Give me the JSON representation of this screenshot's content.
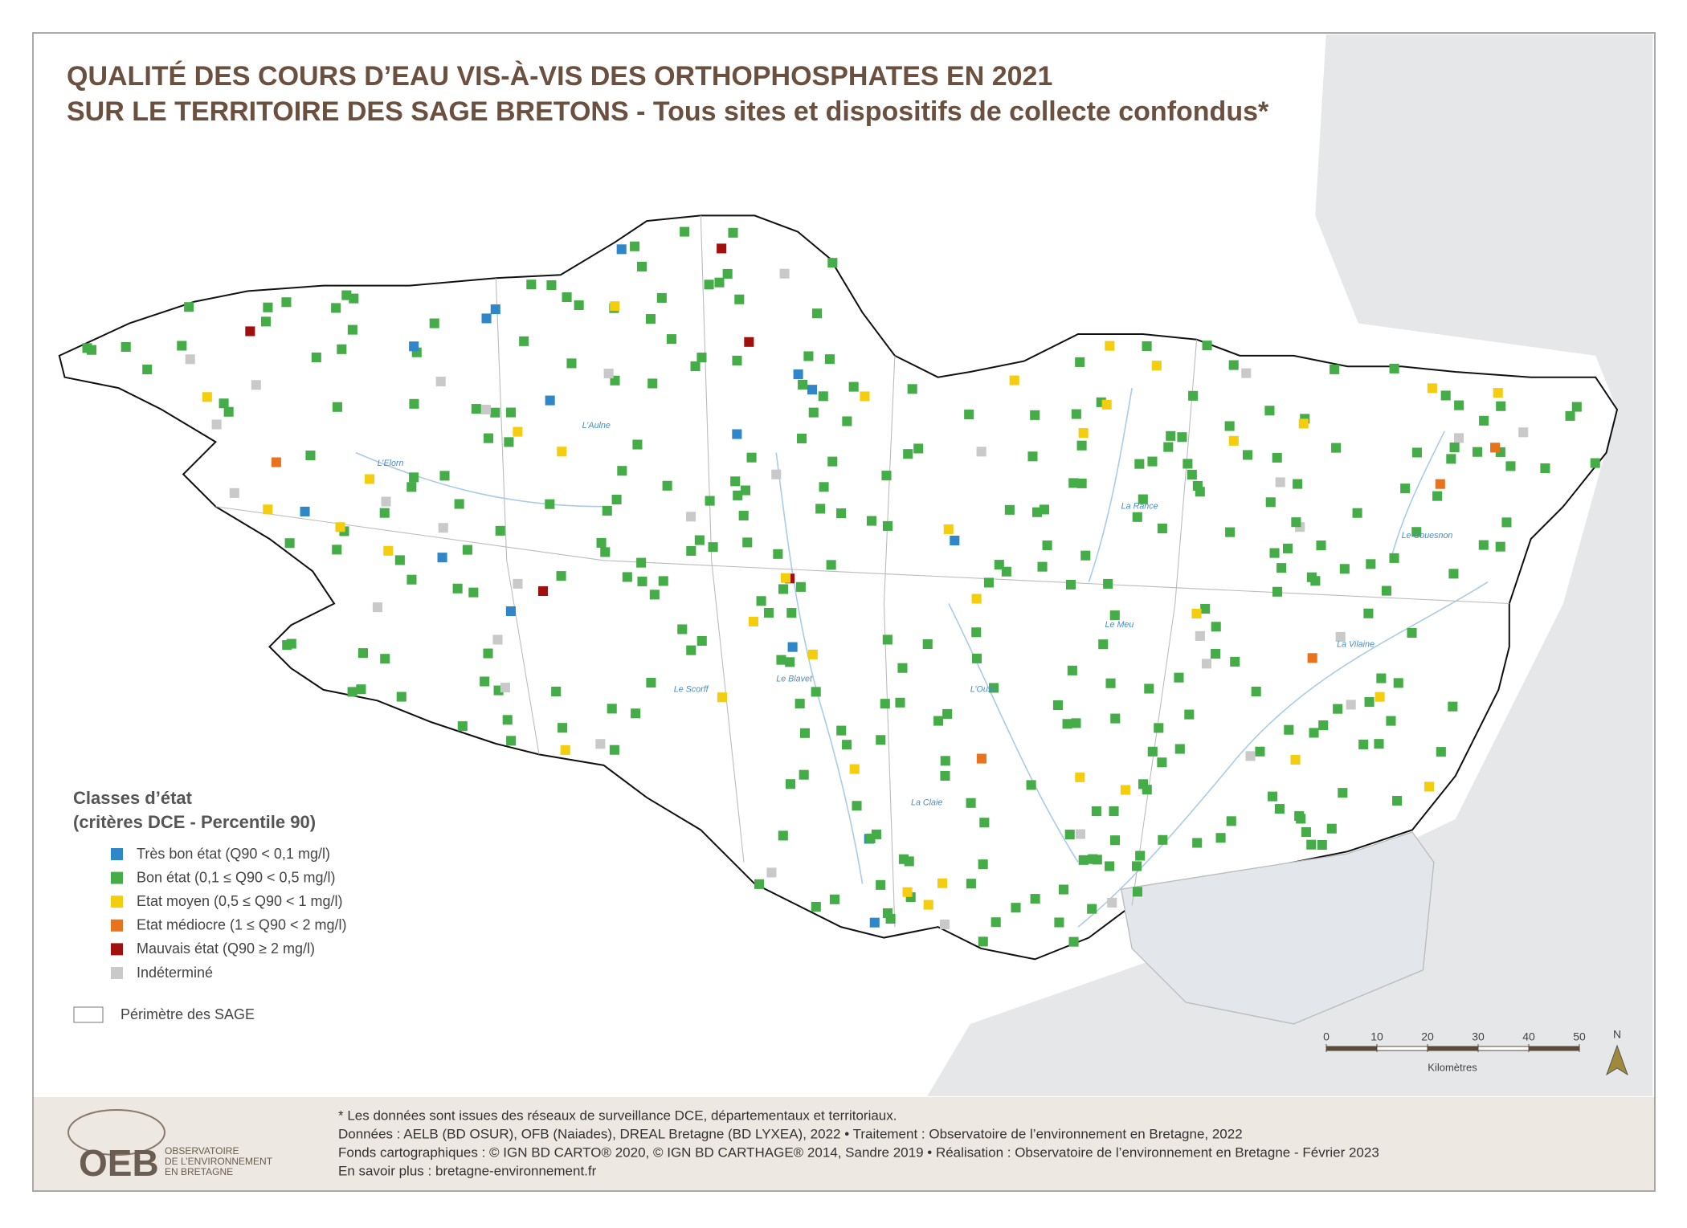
{
  "header": {
    "title_line1": "QUALITÉ DES COURS D’EAU VIS-À-VIS DES ORTHOPHOSPHATES EN 2021",
    "title_line2": "SUR LE TERRITOIRE DES SAGE BRETONS - Tous sites et dispositifs de collecte confondus*"
  },
  "legend": {
    "title_line1": "Classes d’état",
    "title_line2": "(critères DCE - Percentile 90)",
    "items": [
      {
        "label": "Très bon état (Q90 < 0,1 mg/l)",
        "color": "#2f86c8"
      },
      {
        "label": "Bon état (0,1 ≤ Q90 < 0,5 mg/l)",
        "color": "#45ad48"
      },
      {
        "label": "Etat moyen (0,5 ≤ Q90 < 1 mg/l)",
        "color": "#f5cd0f"
      },
      {
        "label": "Etat médiocre (1 ≤ Q90 < 2 mg/l)",
        "color": "#e8731c"
      },
      {
        "label": "Mauvais état (Q90 ≥ 2 mg/l)",
        "color": "#a0100f"
      },
      {
        "label": "Indéterminé",
        "color": "#c9c9c9"
      }
    ],
    "perimeter": "Périmètre des SAGE"
  },
  "rivers": [
    "La Vilaine",
    "Le Blavet",
    "L’Aulne",
    "La Rance",
    "Le Couesnon",
    "L’Oust",
    "Le Scorff",
    "L’Elorn",
    "Le Meu",
    "La Claie"
  ],
  "scale": {
    "ticks": [
      0,
      10,
      20,
      30,
      40,
      50
    ],
    "unit": "Kilomètres",
    "north": "N"
  },
  "footer": {
    "lines": [
      "* Les données sont issues des réseaux de surveillance DCE, départementaux et territoriaux.",
      "Données : AELB (BD OSUR), OFB (Naiades), DREAL Bretagne (BD LYXEA), 2022 • Traitement : Observatoire de l’environnement en Bretagne, 2022",
      "Fonds cartographiques : © IGN BD CARTO® 2020, © IGN BD CARTHAGE® 2014, Sandre 2019 • Réalisation : Observatoire de l’environnement en Bretagne - Février 2023",
      "En savoir plus : bretagne-environnement.fr"
    ],
    "logo": "OEB",
    "logo_sub": [
      "OBSERVATOIRE",
      "DE L’ENVIRONNEMENT",
      "EN BRETAGNE"
    ]
  }
}
